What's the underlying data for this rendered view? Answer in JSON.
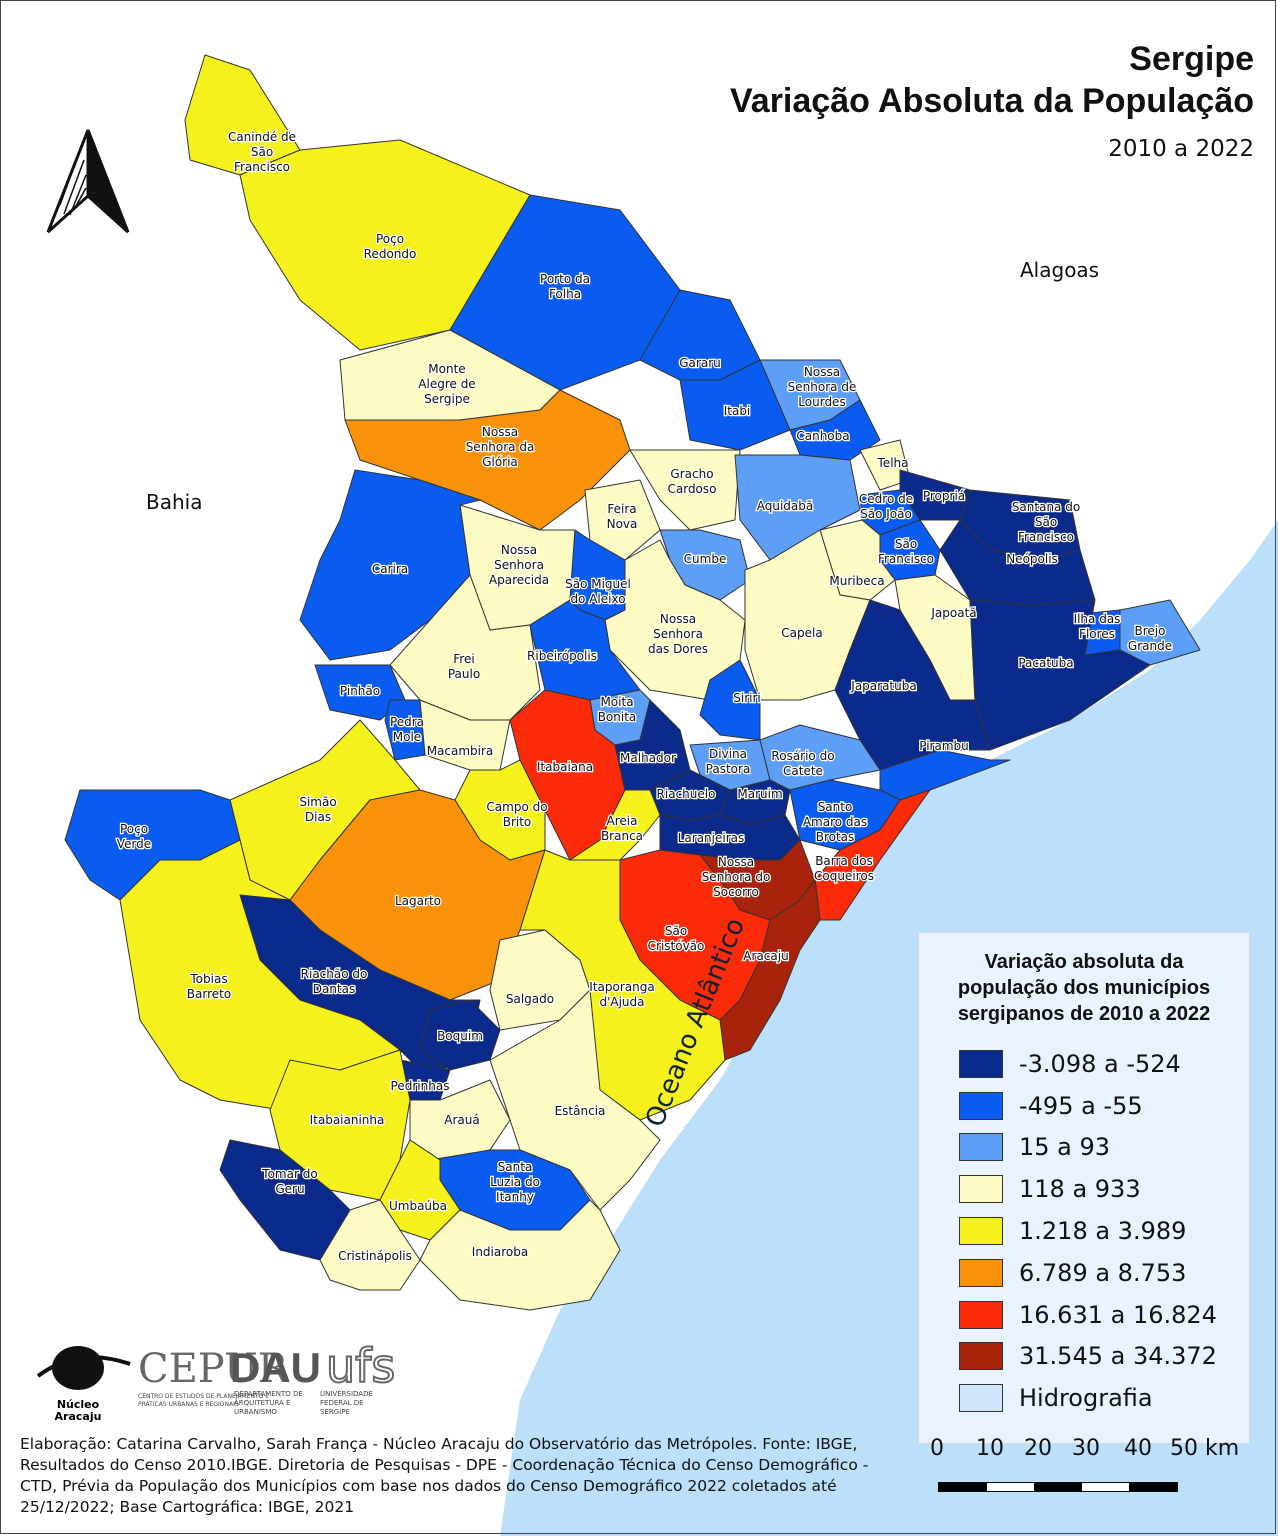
{
  "title": {
    "line1": "Sergipe",
    "line2": "Variação Absoluta da População",
    "period": "2010 a 2022"
  },
  "neighbors": {
    "north": "Alagoas",
    "west": "Bahia"
  },
  "ocean": "Oceano Atlântico",
  "legend": {
    "title_line1": "Variação absoluta da",
    "title_line2": "população dos municípios",
    "title_line3": "sergipanos de 2010 a 2022",
    "classes": [
      {
        "label": "-3.098 a -524",
        "color": "#0a2a8c"
      },
      {
        "label": "-495 a -55",
        "color": "#0a5cf0"
      },
      {
        "label": "15 a 93",
        "color": "#5d9ef7"
      },
      {
        "label": "118 a 933",
        "color": "#fdfbc4"
      },
      {
        "label": "1.218 a 3.989",
        "color": "#f4f11c"
      },
      {
        "label": "6.789 a 8.753",
        "color": "#f99208"
      },
      {
        "label": "16.631 a 16.824",
        "color": "#fb2a08"
      },
      {
        "label": "31.545 a 34.372",
        "color": "#a8230c"
      },
      {
        "label": "Hidrografia",
        "color": "#cfe6fb"
      }
    ]
  },
  "colors": {
    "ocean": "#bcdffa",
    "outside": "#ffffff",
    "border": "#333333"
  },
  "municipalities": [
    {
      "id": "caninde",
      "lines": [
        "Canindé de",
        "São",
        "Francisco"
      ],
      "class": 4
    },
    {
      "id": "poco-redondo",
      "lines": [
        "Poço",
        "Redondo"
      ],
      "class": 4
    },
    {
      "id": "porto-da-folha",
      "lines": [
        "Porto da",
        "Folha"
      ],
      "class": 1
    },
    {
      "id": "monte-alegre",
      "lines": [
        "Monte",
        "Alegre de",
        "Sergipe"
      ],
      "class": 3
    },
    {
      "id": "gararu",
      "lines": [
        "Gararu"
      ],
      "class": 1
    },
    {
      "id": "itabi",
      "lines": [
        "Itabi"
      ],
      "class": 1
    },
    {
      "id": "ns-lourdes",
      "lines": [
        "Nossa",
        "Senhora de",
        "Lourdes"
      ],
      "class": 2
    },
    {
      "id": "canhoba",
      "lines": [
        "Canhoba"
      ],
      "class": 1
    },
    {
      "id": "ns-gloria",
      "lines": [
        "Nossa",
        "Senhora da",
        "Glória"
      ],
      "class": 5
    },
    {
      "id": "gracho-cardoso",
      "lines": [
        "Gracho",
        "Cardoso"
      ],
      "class": 3
    },
    {
      "id": "telha",
      "lines": [
        "Telha"
      ],
      "class": 3
    },
    {
      "id": "aquidaba",
      "lines": [
        "Aquidabã"
      ],
      "class": 2
    },
    {
      "id": "cedro",
      "lines": [
        "Cedro de",
        "São João"
      ],
      "class": 1
    },
    {
      "id": "propria",
      "lines": [
        "Propriá"
      ],
      "class": 0
    },
    {
      "id": "santana",
      "lines": [
        "Santana do",
        "São",
        "Francisco"
      ],
      "class": 0
    },
    {
      "id": "neopolis",
      "lines": [
        "Neópolis"
      ],
      "class": 0
    },
    {
      "id": "feira-nova",
      "lines": [
        "Feira",
        "Nova"
      ],
      "class": 3
    },
    {
      "id": "ns-aparecida",
      "lines": [
        "Nossa",
        "Senhora",
        "Aparecida"
      ],
      "class": 3
    },
    {
      "id": "carira",
      "lines": [
        "Carira"
      ],
      "class": 1
    },
    {
      "id": "cumbe",
      "lines": [
        "Cumbe"
      ],
      "class": 2
    },
    {
      "id": "sao-francisco",
      "lines": [
        "São",
        "Francisco"
      ],
      "class": 1
    },
    {
      "id": "muribeca",
      "lines": [
        "Muribeca"
      ],
      "class": 3
    },
    {
      "id": "japoata",
      "lines": [
        "Japoatã"
      ],
      "class": 3
    },
    {
      "id": "sao-miguel",
      "lines": [
        "São Miguel",
        "do Aleixo"
      ],
      "class": 1
    },
    {
      "id": "ns-dores",
      "lines": [
        "Nossa",
        "Senhora",
        "das Dores"
      ],
      "class": 3
    },
    {
      "id": "ilha-flores",
      "lines": [
        "Ilha das",
        "Flores"
      ],
      "class": 1
    },
    {
      "id": "brejo-grande",
      "lines": [
        "Brejo",
        "Grande"
      ],
      "class": 2
    },
    {
      "id": "capela",
      "lines": [
        "Capela"
      ],
      "class": 3
    },
    {
      "id": "frei-paulo",
      "lines": [
        "Frei",
        "Paulo"
      ],
      "class": 3
    },
    {
      "id": "ribeiropolis",
      "lines": [
        "Ribeirópolis"
      ],
      "class": 1
    },
    {
      "id": "pacatuba",
      "lines": [
        "Pacatuba"
      ],
      "class": 0
    },
    {
      "id": "japaratuba",
      "lines": [
        "Japaratuba"
      ],
      "class": 0
    },
    {
      "id": "pinhao",
      "lines": [
        "Pinhão"
      ],
      "class": 1
    },
    {
      "id": "moita-bonita",
      "lines": [
        "Moita",
        "Bonita"
      ],
      "class": 2
    },
    {
      "id": "siriri",
      "lines": [
        "Siriri"
      ],
      "class": 1
    },
    {
      "id": "pedra-mole",
      "lines": [
        "Pedra",
        "Mole"
      ],
      "class": 1
    },
    {
      "id": "macambira",
      "lines": [
        "Macambira"
      ],
      "class": 3
    },
    {
      "id": "itabaiana",
      "lines": [
        "Itabaiana"
      ],
      "class": 6
    },
    {
      "id": "malhador",
      "lines": [
        "Malhador"
      ],
      "class": 0
    },
    {
      "id": "divina-pastora",
      "lines": [
        "Divina",
        "Pastora"
      ],
      "class": 2
    },
    {
      "id": "rosario",
      "lines": [
        "Rosário do",
        "Catete"
      ],
      "class": 2
    },
    {
      "id": "pirambu",
      "lines": [
        "Pirambu"
      ],
      "class": 1
    },
    {
      "id": "simao-dias",
      "lines": [
        "Simão",
        "Dias"
      ],
      "class": 4
    },
    {
      "id": "campo-brito",
      "lines": [
        "Campo do",
        "Brito"
      ],
      "class": 4
    },
    {
      "id": "riachuelo",
      "lines": [
        "Riachuelo"
      ],
      "class": 0
    },
    {
      "id": "maruim",
      "lines": [
        "Maruim"
      ],
      "class": 0
    },
    {
      "id": "santo-amaro",
      "lines": [
        "Santo",
        "Amaro das",
        "Brotas"
      ],
      "class": 1
    },
    {
      "id": "poco-verde",
      "lines": [
        "Poço",
        "Verde"
      ],
      "class": 1
    },
    {
      "id": "areia-branca",
      "lines": [
        "Areia",
        "Branca"
      ],
      "class": 4
    },
    {
      "id": "laranjeiras",
      "lines": [
        "Laranjeiras"
      ],
      "class": 0
    },
    {
      "id": "barra-coqueiros",
      "lines": [
        "Barra dos",
        "Coqueiros"
      ],
      "class": 6
    },
    {
      "id": "ns-socorro",
      "lines": [
        "Nossa",
        "Senhora do",
        "Socorro"
      ],
      "class": 7
    },
    {
      "id": "lagarto",
      "lines": [
        "Lagarto"
      ],
      "class": 5
    },
    {
      "id": "sao-cristovao",
      "lines": [
        "São",
        "Cristóvão"
      ],
      "class": 6
    },
    {
      "id": "aracaju",
      "lines": [
        "Aracaju"
      ],
      "class": 7
    },
    {
      "id": "tobias-barreto",
      "lines": [
        "Tobias",
        "Barreto"
      ],
      "class": 4
    },
    {
      "id": "riachao",
      "lines": [
        "Riachão do",
        "Dantas"
      ],
      "class": 0
    },
    {
      "id": "salgado",
      "lines": [
        "Salgado"
      ],
      "class": 3
    },
    {
      "id": "itaporanga",
      "lines": [
        "Itaporanga",
        "d'Ajuda"
      ],
      "class": 4
    },
    {
      "id": "boquim",
      "lines": [
        "Boquim"
      ],
      "class": 0
    },
    {
      "id": "pedrinhas",
      "lines": [
        "Pedrinhas"
      ],
      "class": 0
    },
    {
      "id": "itabaianinha",
      "lines": [
        "Itabaianinha"
      ],
      "class": 4
    },
    {
      "id": "araua",
      "lines": [
        "Arauá"
      ],
      "class": 3
    },
    {
      "id": "estancia",
      "lines": [
        "Estância"
      ],
      "class": 3
    },
    {
      "id": "tomar-geru",
      "lines": [
        "Tomar do",
        "Geru"
      ],
      "class": 0
    },
    {
      "id": "santa-luzia",
      "lines": [
        "Santa",
        "Luzia do",
        "Itanhy"
      ],
      "class": 1
    },
    {
      "id": "umbauba",
      "lines": [
        "Umbaúba"
      ],
      "class": 4
    },
    {
      "id": "cristinapolis",
      "lines": [
        "Cristinápolis"
      ],
      "class": 3
    },
    {
      "id": "indiaroba",
      "lines": [
        "Indiaroba"
      ],
      "class": 3
    }
  ],
  "scale_bar": {
    "ticks": [
      "0",
      "10",
      "20",
      "30",
      "40",
      "50 km"
    ]
  },
  "credits": "Elaboração: Catarina Carvalho, Sarah França - Núcleo Aracaju do Observatório das Metrópoles. Fonte: IBGE, Resultados do Censo 2010.IBGE. Diretoria de Pesquisas - DPE - Coordenação Técnica do Censo Demográfico - CTD, Prévia da População dos Municípios com base nos dados do Censo Demográfico 2022 coletados até 25/12/2022; Base Cartográfica: IBGE, 2021",
  "logos": {
    "nucleo_line1": "Núcleo",
    "nucleo_line2": "Aracaju",
    "cepur": "CEPUR",
    "cepur_sub1": "CENTRO DE ESTUDOS DE PLANEJAMENTO E",
    "cepur_sub2": "PRÁTICAS URBANAS E REGIONAIS",
    "dau": "DAU",
    "dau_sub1": "DEPARTAMENTO DE",
    "dau_sub2": "ARQUITETURA E",
    "dau_sub3": "URBANISMO",
    "ufs": "ufs",
    "ufs_sub1": "UNIVERSIDADE",
    "ufs_sub2": "FEDERAL DE",
    "ufs_sub3": "SERGIPE"
  }
}
